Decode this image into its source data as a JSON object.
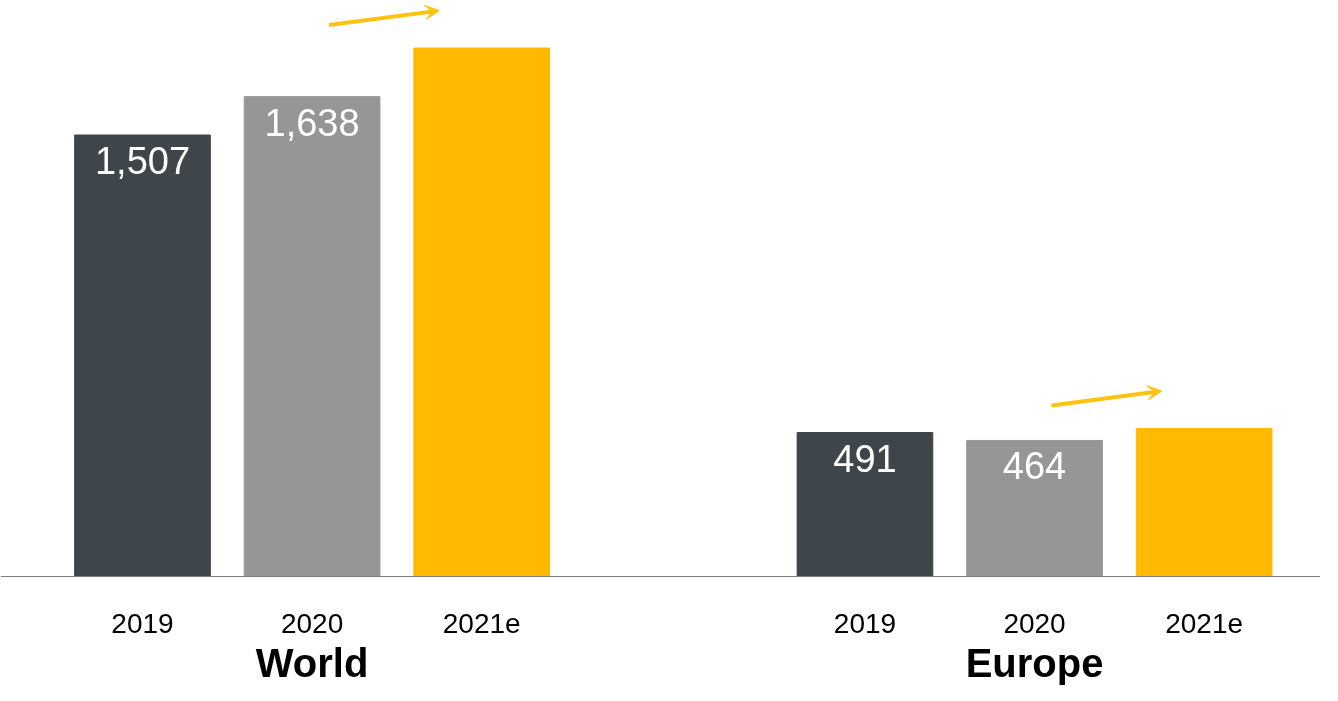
{
  "chart_data": {
    "type": "bar",
    "categories": [
      "2019",
      "2020",
      "2021e",
      "2019",
      "2020",
      "2021e"
    ],
    "values": [
      1507,
      1638,
      1804,
      491,
      464,
      505
    ],
    "colors": [
      "#3f464b",
      "#969696",
      "#ffb900",
      "#3f464b",
      "#969696",
      "#ffb900"
    ],
    "value_labels": [
      "1,507",
      "1,638",
      null,
      "491",
      "464",
      null
    ],
    "annotations": [
      "World",
      "Europe"
    ],
    "grid": false
  }
}
